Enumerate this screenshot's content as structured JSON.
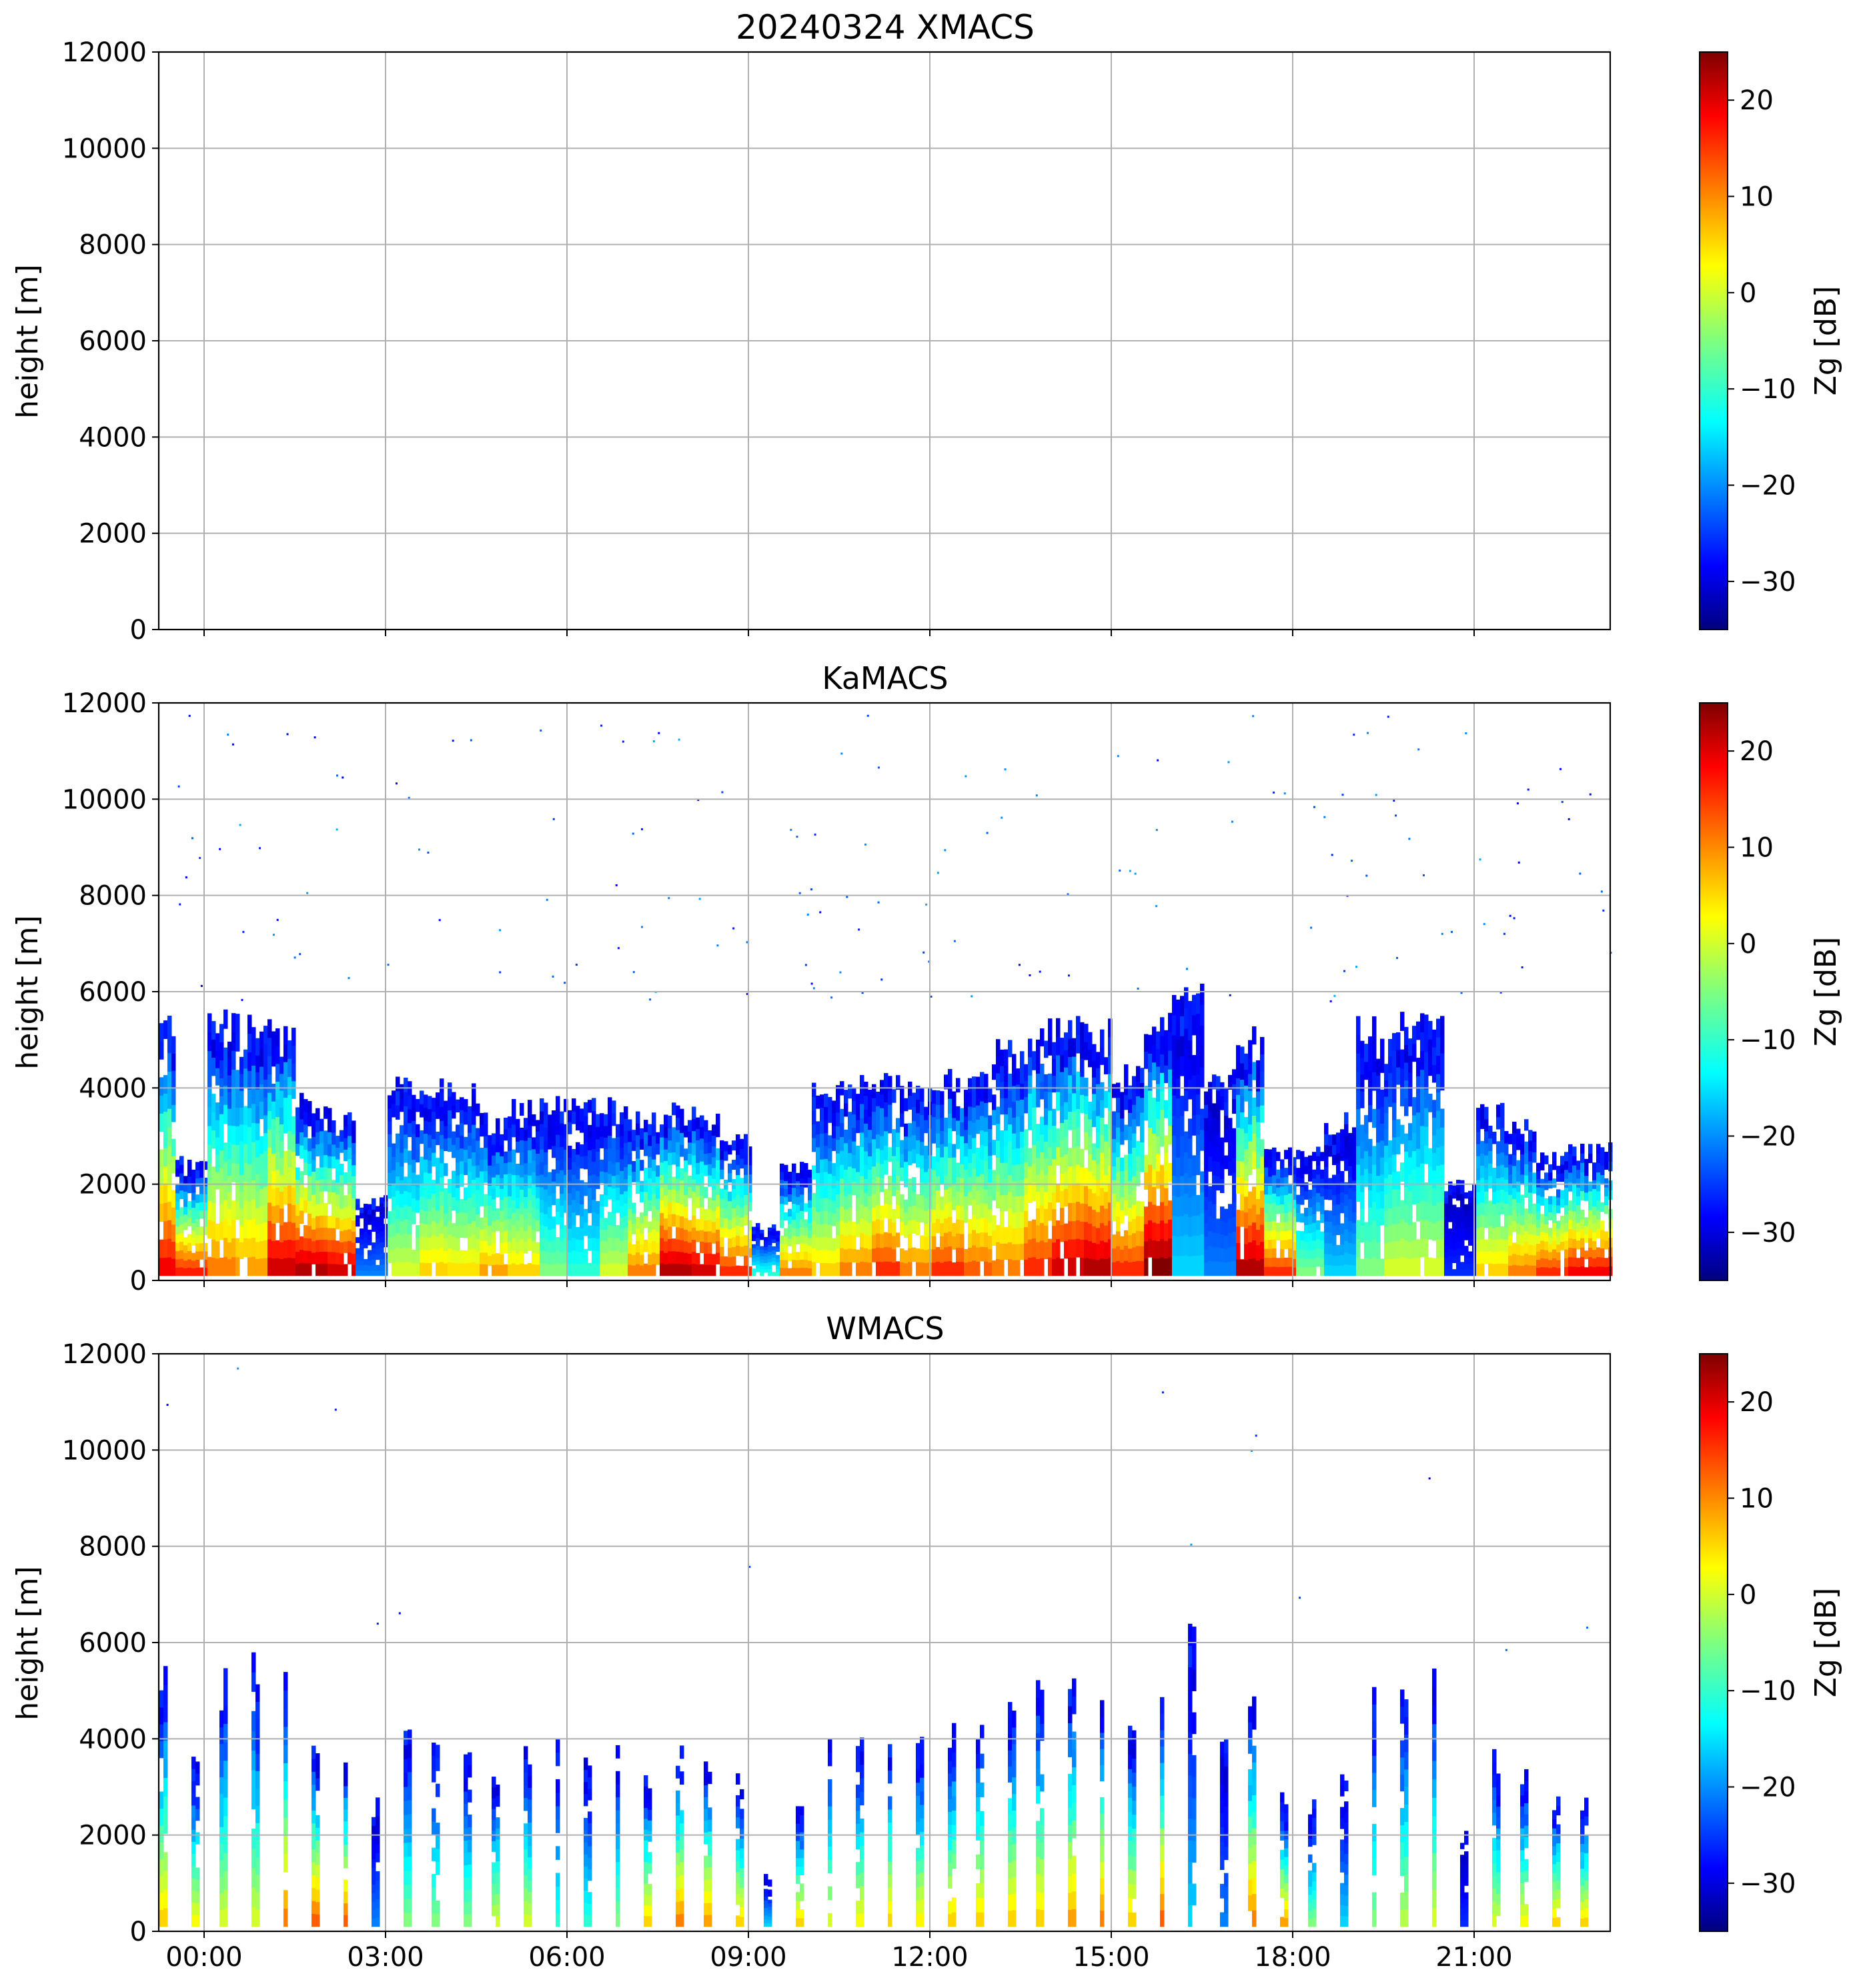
{
  "chart_data": [
    {
      "type": "heatmap",
      "title": "20240324 XMACS",
      "ylabel": "height [m]",
      "xlabel": "",
      "ylim": [
        0,
        12000
      ],
      "yticks": [
        "0",
        "2000",
        "4000",
        "6000",
        "8000",
        "10000",
        "12000"
      ],
      "xticks": [
        "00:00",
        "03:00",
        "06:00",
        "09:00",
        "12:00",
        "15:00",
        "18:00",
        "21:00"
      ],
      "xlim_hours": [
        -0.75,
        23.25
      ],
      "grid": true,
      "colorbar": {
        "label": "Zg [dB]",
        "range": [
          -35,
          25
        ],
        "ticks": [
          "−30",
          "−20",
          "−10",
          "0",
          "10",
          "20"
        ],
        "colormap": "jet"
      },
      "echo": "none",
      "cloud_top_profile": []
    },
    {
      "type": "heatmap",
      "title": "KaMACS",
      "ylabel": "height [m]",
      "xlabel": "",
      "ylim": [
        0,
        12000
      ],
      "yticks": [
        "0",
        "2000",
        "4000",
        "6000",
        "8000",
        "10000",
        "12000"
      ],
      "xticks": [
        "00:00",
        "03:00",
        "06:00",
        "09:00",
        "12:00",
        "15:00",
        "18:00",
        "21:00"
      ],
      "xlim_hours": [
        -0.75,
        23.25
      ],
      "grid": true,
      "colorbar": {
        "label": "Zg [dB]",
        "range": [
          -35,
          25
        ],
        "ticks": [
          "−30",
          "−20",
          "−10",
          "0",
          "10",
          "20"
        ],
        "colormap": "jet"
      },
      "echo": "continuous",
      "cloud_top_profile": [
        {
          "t": -0.75,
          "top": 5600,
          "core": 18
        },
        {
          "t": -0.25,
          "top": 2600,
          "core": 16
        },
        {
          "t": 0.25,
          "top": 5700,
          "core": 10
        },
        {
          "t": 0.75,
          "top": 5700,
          "core": 8
        },
        {
          "t": 1.25,
          "top": 5700,
          "core": 20
        },
        {
          "t": 1.75,
          "top": 4000,
          "core": 22
        },
        {
          "t": 2.25,
          "top": 3800,
          "core": 20
        },
        {
          "t": 2.75,
          "top": 1800,
          "core": -20
        },
        {
          "t": 3.25,
          "top": 4300,
          "core": 0
        },
        {
          "t": 3.75,
          "top": 4300,
          "core": 5
        },
        {
          "t": 4.25,
          "top": 4200,
          "core": 4
        },
        {
          "t": 4.75,
          "top": 3500,
          "core": 8
        },
        {
          "t": 5.25,
          "top": 3800,
          "core": 5
        },
        {
          "t": 5.75,
          "top": 4000,
          "core": -5
        },
        {
          "t": 6.25,
          "top": 4000,
          "core": -10
        },
        {
          "t": 6.75,
          "top": 3900,
          "core": 0
        },
        {
          "t": 7.25,
          "top": 3600,
          "core": 10
        },
        {
          "t": 7.75,
          "top": 3800,
          "core": 22
        },
        {
          "t": 8.25,
          "top": 3700,
          "core": 20
        },
        {
          "t": 8.75,
          "top": 3200,
          "core": 15
        },
        {
          "t": 9.25,
          "top": 1200,
          "core": -10
        },
        {
          "t": 9.75,
          "top": 2600,
          "core": 10
        },
        {
          "t": 10.25,
          "top": 4300,
          "core": 5
        },
        {
          "t": 10.75,
          "top": 4300,
          "core": 10
        },
        {
          "t": 11.25,
          "top": 4400,
          "core": 15
        },
        {
          "t": 11.75,
          "top": 4400,
          "core": 10
        },
        {
          "t": 12.25,
          "top": 4400,
          "core": 15
        },
        {
          "t": 12.75,
          "top": 4600,
          "core": 12
        },
        {
          "t": 13.25,
          "top": 5200,
          "core": 10
        },
        {
          "t": 13.75,
          "top": 5600,
          "core": 15
        },
        {
          "t": 14.25,
          "top": 5600,
          "core": 20
        },
        {
          "t": 14.75,
          "top": 5500,
          "core": 22
        },
        {
          "t": 15.25,
          "top": 4500,
          "core": 15
        },
        {
          "t": 15.75,
          "top": 5600,
          "core": 25
        },
        {
          "t": 16.25,
          "top": 6400,
          "core": -15
        },
        {
          "t": 16.75,
          "top": 4500,
          "core": -20
        },
        {
          "t": 17.25,
          "top": 5300,
          "core": 22
        },
        {
          "t": 17.75,
          "top": 2900,
          "core": 15
        },
        {
          "t": 18.25,
          "top": 2800,
          "core": -5
        },
        {
          "t": 18.75,
          "top": 3500,
          "core": -15
        },
        {
          "t": 19.25,
          "top": 5600,
          "core": -5
        },
        {
          "t": 19.75,
          "top": 5600,
          "core": 0
        },
        {
          "t": 20.25,
          "top": 5600,
          "core": 0
        },
        {
          "t": 20.75,
          "top": 2100,
          "core": -25
        },
        {
          "t": 21.25,
          "top": 3800,
          "core": 5
        },
        {
          "t": 21.75,
          "top": 3500,
          "core": 10
        },
        {
          "t": 22.25,
          "top": 2700,
          "core": 15
        },
        {
          "t": 22.75,
          "top": 2900,
          "core": 18
        }
      ]
    },
    {
      "type": "heatmap",
      "title": "WMACS",
      "ylabel": "height [m]",
      "xlabel": "",
      "ylim": [
        0,
        12000
      ],
      "yticks": [
        "0",
        "2000",
        "4000",
        "6000",
        "8000",
        "10000",
        "12000"
      ],
      "xticks": [
        "00:00",
        "03:00",
        "06:00",
        "09:00",
        "12:00",
        "15:00",
        "18:00",
        "21:00"
      ],
      "xlim_hours": [
        -0.75,
        23.25
      ],
      "grid": true,
      "colorbar": {
        "label": "Zg [dB]",
        "range": [
          -35,
          25
        ],
        "ticks": [
          "−30",
          "−20",
          "−10",
          "0",
          "10",
          "20"
        ],
        "colormap": "jet"
      },
      "echo": "strips",
      "cloud_top_profile": [
        {
          "t": -0.75,
          "top": 5600,
          "core": 5
        },
        {
          "t": -0.25,
          "top": 4000,
          "core": 2
        },
        {
          "t": 0.25,
          "top": 5700,
          "core": 0
        },
        {
          "t": 0.75,
          "top": 5800,
          "core": 0
        },
        {
          "t": 1.25,
          "top": 5700,
          "core": 10
        },
        {
          "t": 1.75,
          "top": 4000,
          "core": 12
        },
        {
          "t": 2.25,
          "top": 3800,
          "core": 12
        },
        {
          "t": 2.75,
          "top": 2800,
          "core": -20
        },
        {
          "t": 3.25,
          "top": 4300,
          "core": -5
        },
        {
          "t": 3.75,
          "top": 4300,
          "core": -5
        },
        {
          "t": 4.25,
          "top": 4200,
          "core": -5
        },
        {
          "t": 4.75,
          "top": 3500,
          "core": 0
        },
        {
          "t": 5.25,
          "top": 4000,
          "core": 0
        },
        {
          "t": 5.75,
          "top": 4000,
          "core": -10
        },
        {
          "t": 6.25,
          "top": 4000,
          "core": -10
        },
        {
          "t": 6.75,
          "top": 4000,
          "core": -5
        },
        {
          "t": 7.25,
          "top": 3600,
          "core": 5
        },
        {
          "t": 7.75,
          "top": 3900,
          "core": 10
        },
        {
          "t": 8.25,
          "top": 3700,
          "core": 8
        },
        {
          "t": 8.75,
          "top": 3300,
          "core": 5
        },
        {
          "t": 9.25,
          "top": 1200,
          "core": -15
        },
        {
          "t": 9.75,
          "top": 2600,
          "core": 5
        },
        {
          "t": 10.25,
          "top": 4300,
          "core": 0
        },
        {
          "t": 10.75,
          "top": 4300,
          "core": 2
        },
        {
          "t": 11.25,
          "top": 4400,
          "core": 5
        },
        {
          "t": 11.75,
          "top": 4400,
          "core": 3
        },
        {
          "t": 12.25,
          "top": 4400,
          "core": 5
        },
        {
          "t": 12.75,
          "top": 4600,
          "core": 5
        },
        {
          "t": 13.25,
          "top": 5200,
          "core": 5
        },
        {
          "t": 13.75,
          "top": 5600,
          "core": 5
        },
        {
          "t": 14.25,
          "top": 5700,
          "core": 8
        },
        {
          "t": 14.75,
          "top": 5500,
          "core": 10
        },
        {
          "t": 15.25,
          "top": 4500,
          "core": 5
        },
        {
          "t": 15.75,
          "top": 5600,
          "core": 12
        },
        {
          "t": 16.25,
          "top": 6400,
          "core": -15
        },
        {
          "t": 16.75,
          "top": 4500,
          "core": -20
        },
        {
          "t": 17.25,
          "top": 5300,
          "core": 10
        },
        {
          "t": 17.75,
          "top": 2900,
          "core": 8
        },
        {
          "t": 18.25,
          "top": 2800,
          "core": -5
        },
        {
          "t": 18.75,
          "top": 3500,
          "core": -15
        },
        {
          "t": 19.25,
          "top": 5600,
          "core": -5
        },
        {
          "t": 19.75,
          "top": 5600,
          "core": -2
        },
        {
          "t": 20.25,
          "top": 5600,
          "core": 0
        },
        {
          "t": 20.75,
          "top": 2100,
          "core": -25
        },
        {
          "t": 21.25,
          "top": 3800,
          "core": 0
        },
        {
          "t": 21.75,
          "top": 3500,
          "core": 2
        },
        {
          "t": 22.25,
          "top": 2900,
          "core": 5
        },
        {
          "t": 22.75,
          "top": 2800,
          "core": 5
        }
      ]
    }
  ]
}
